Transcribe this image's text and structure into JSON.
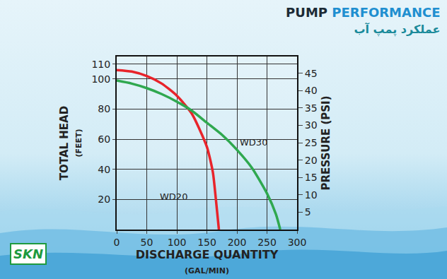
{
  "chart_data": {
    "type": "line",
    "title": "PUMP PERFORMANCE",
    "subtitle": "عملکرد پمپ آب",
    "brand": "SKN",
    "x_label": "DISCHARGE QUANTITY\n(GAL/MIN)",
    "y_label": "TOTAL HEAD\n(FEET)",
    "y2_label": "PRESSURE (PSI)",
    "xlim": [
      0,
      300
    ],
    "xticks": [
      0,
      50,
      100,
      150,
      200,
      250,
      300
    ],
    "ylim": [
      0,
      115
    ],
    "yticks": [
      20,
      40,
      60,
      80,
      100,
      110
    ],
    "y2lim": [
      0,
      49.8
    ],
    "y2ticks": [
      5,
      10,
      15,
      20,
      25,
      30,
      35,
      40,
      45
    ],
    "grid": true,
    "series": [
      {
        "name": "WD20",
        "color": "#e8242b",
        "x": [
          0,
          25,
          50,
          75,
          100,
          125,
          150,
          160,
          165,
          170
        ],
        "values": [
          106,
          105,
          102,
          97,
          89,
          77,
          55,
          38,
          20,
          0
        ]
      },
      {
        "name": "WD30",
        "color": "#2fa84f",
        "x": [
          0,
          25,
          50,
          75,
          100,
          125,
          150,
          175,
          200,
          225,
          250,
          265,
          272
        ],
        "values": [
          99,
          97,
          94,
          90,
          85,
          79,
          71,
          63,
          53,
          41,
          24,
          10,
          0
        ]
      }
    ],
    "annotations": [
      {
        "text": "WD20",
        "x": 95,
        "y": 22
      },
      {
        "text": "WD30",
        "x": 228,
        "y": 58
      }
    ]
  }
}
